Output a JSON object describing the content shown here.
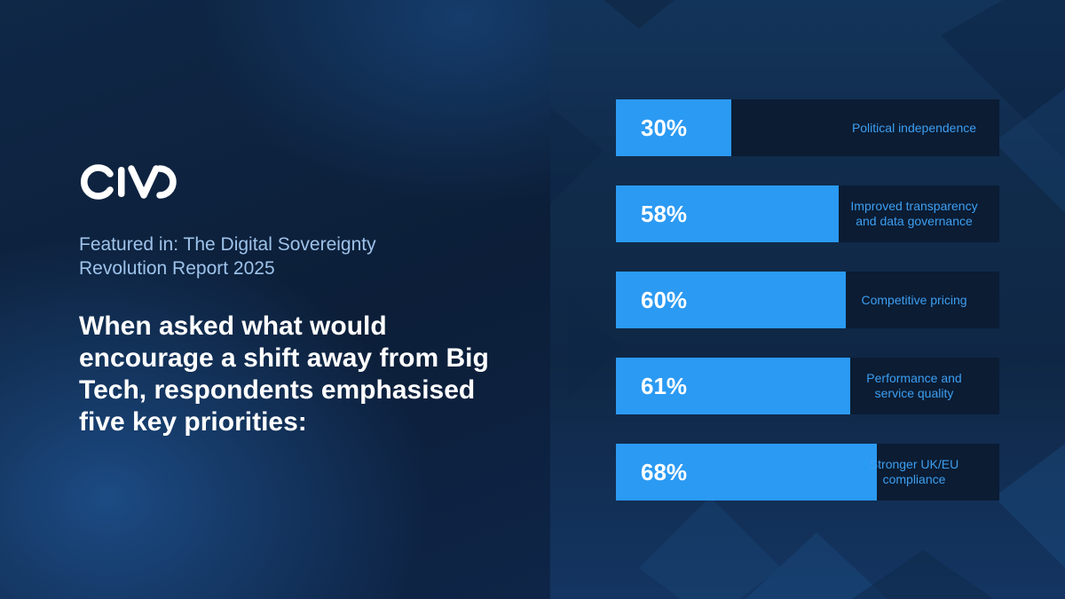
{
  "brand": {
    "logo_text": "CIVO"
  },
  "report_label": "Featured in: The Digital Sovereignty Revolution Report 2025",
  "headline": "When asked what would encourage a shift away from Big Tech, respondents emphasised five key priorities:",
  "colors": {
    "bar_fill": "#2b9af3",
    "bar_track": "#0b1c33",
    "label_text": "#3d9ef0",
    "report_label_text": "#9ec3ea",
    "headline_text": "#ffffff"
  },
  "chart_data": {
    "type": "bar",
    "orientation": "horizontal",
    "categories": [
      "Political independence",
      "Improved transparency\nand data governance",
      "Competitive pricing",
      "Performance and\nservice quality",
      "Stronger UK/EU\ncompliance"
    ],
    "values": [
      30,
      58,
      60,
      61,
      68
    ],
    "value_labels": [
      "30%",
      "58%",
      "60%",
      "61%",
      "68%"
    ],
    "value_unit": "%",
    "xlim": [
      0,
      100
    ],
    "grid": false,
    "title": "",
    "xlabel": "",
    "ylabel": ""
  }
}
